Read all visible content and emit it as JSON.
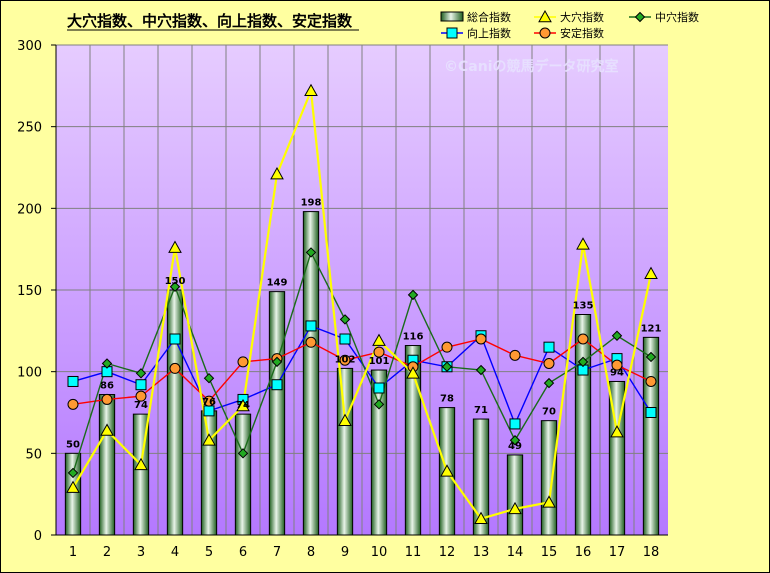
{
  "chart_data": {
    "type": "bar",
    "title": "大穴指数、中穴指数、向上指数、安定指数",
    "watermark": "©Caniの競馬データ研究室",
    "categories": [
      "1",
      "2",
      "3",
      "4",
      "5",
      "6",
      "7",
      "8",
      "9",
      "10",
      "11",
      "12",
      "13",
      "14",
      "15",
      "16",
      "17",
      "18"
    ],
    "ylim": [
      0,
      300
    ],
    "yticks": [
      0,
      50,
      100,
      150,
      200,
      250,
      300
    ],
    "grid": true,
    "legend_position": "top",
    "series": [
      {
        "name": "総合指数",
        "type": "bar",
        "color": "#2e7d32",
        "values": [
          50,
          86,
          74,
          150,
          76,
          74,
          149,
          198,
          102,
          101,
          116,
          78,
          71,
          49,
          70,
          135,
          94,
          121
        ],
        "labels": [
          "50",
          "86",
          "74",
          "150",
          "76",
          "74",
          "149",
          "198",
          "102",
          "101",
          "116",
          "78",
          "71",
          "49",
          "70",
          "135",
          "94",
          "121"
        ]
      },
      {
        "name": "大穴指数",
        "type": "line",
        "color": "#ffff00",
        "marker": "triangle",
        "values": [
          29,
          64,
          43,
          176,
          58,
          79,
          221,
          272,
          70,
          119,
          99,
          39,
          10,
          16,
          20,
          178,
          63,
          160
        ]
      },
      {
        "name": "中穴指数",
        "type": "line",
        "color": "#1a6b1a",
        "marker": "diamond",
        "values": [
          38,
          105,
          99,
          152,
          96,
          50,
          106,
          173,
          132,
          80,
          147,
          103,
          101,
          58,
          93,
          106,
          122,
          109
        ]
      },
      {
        "name": "向上指数",
        "type": "line",
        "color": "#0000ff",
        "marker": "square",
        "values": [
          94,
          100,
          92,
          120,
          76,
          83,
          92,
          128,
          120,
          90,
          107,
          103,
          122,
          68,
          115,
          101,
          108,
          75
        ]
      },
      {
        "name": "安定指数",
        "type": "line",
        "color": "#ff0000",
        "marker": "circle",
        "values": [
          80,
          83,
          85,
          102,
          82,
          106,
          108,
          118,
          107,
          112,
          103,
          115,
          120,
          110,
          105,
          120,
          104,
          94
        ]
      }
    ]
  }
}
